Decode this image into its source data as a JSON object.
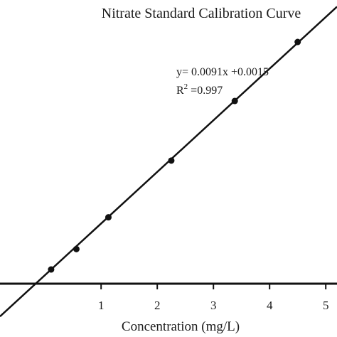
{
  "chart_data": {
    "type": "scatter",
    "title": "Nitrate Standard Calibration Curve",
    "xlabel": "Concentration (mg/L)",
    "ylabel": "",
    "xlim": [
      -0.8,
      5.2
    ],
    "ylim": [
      0.0,
      0.05
    ],
    "x_ticks": [
      1,
      2,
      3,
      4,
      5
    ],
    "x_tick_labels": [
      "1",
      "2",
      "3",
      "4",
      "5"
    ],
    "points": [
      {
        "x": 0.11,
        "y": 0.0025
      },
      {
        "x": 0.56,
        "y": 0.0061
      },
      {
        "x": 1.13,
        "y": 0.0117
      },
      {
        "x": 2.25,
        "y": 0.0217
      },
      {
        "x": 3.38,
        "y": 0.0322
      },
      {
        "x": 4.5,
        "y": 0.0426
      }
    ],
    "fit": {
      "slope": 0.0091,
      "intercept": 0.0015,
      "r2": 0.997
    },
    "annotation": {
      "equation": "y= 0.0091x +0.0015",
      "r2_prefix": "R",
      "r2_sup": "2",
      "r2_value": " =0.997"
    },
    "grid": false,
    "legend": "none"
  }
}
